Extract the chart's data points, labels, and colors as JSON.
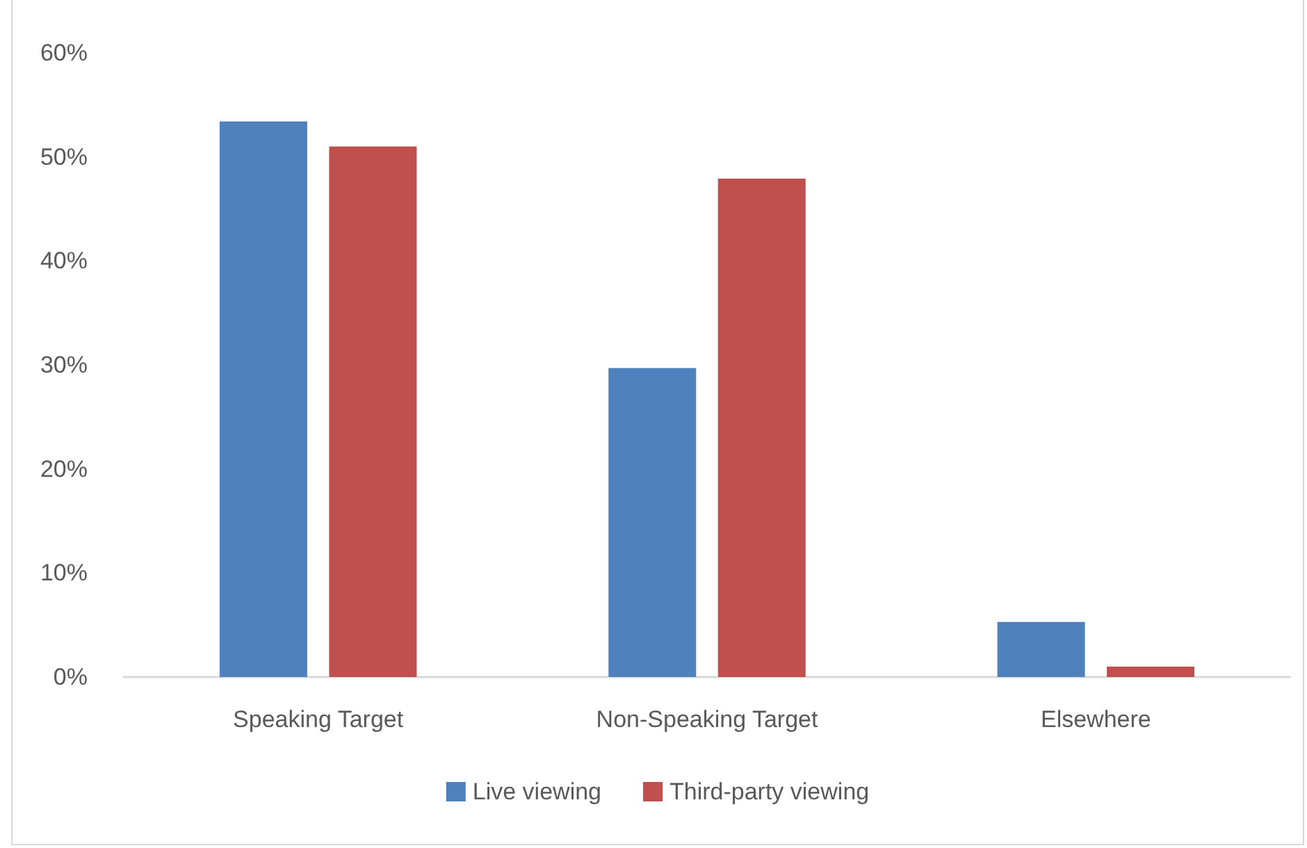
{
  "chart_data": {
    "type": "bar",
    "categories": [
      "Speaking Target",
      "Non-Speaking Target",
      "Elsewhere"
    ],
    "series": [
      {
        "name": "Live viewing",
        "color": "#4f81bd",
        "values": [
          53.4,
          29.7,
          5.3
        ]
      },
      {
        "name": "Third-party viewing",
        "color": "#c0504d",
        "values": [
          51.0,
          47.9,
          1.0
        ]
      }
    ],
    "ylim": [
      0,
      60
    ],
    "yticks": [
      {
        "value": 0,
        "label": "0%"
      },
      {
        "value": 10,
        "label": "10%"
      },
      {
        "value": 20,
        "label": "20%"
      },
      {
        "value": 30,
        "label": "30%"
      },
      {
        "value": 40,
        "label": "40%"
      },
      {
        "value": 50,
        "label": "50%"
      },
      {
        "value": 60,
        "label": "60%"
      }
    ],
    "grid": false,
    "legend": "bottom"
  }
}
